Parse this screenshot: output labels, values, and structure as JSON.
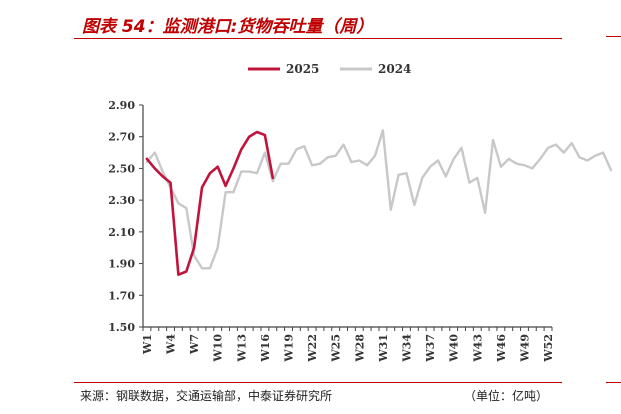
{
  "header": {
    "title": "图表 54：监测港口:货物吞吐量（周）"
  },
  "footer": {
    "source": "来源：钢联数据，交通运输部，中泰证券研究所",
    "unit": "（单位：亿吨）"
  },
  "chart_data": {
    "type": "line",
    "title": "图表 54：监测港口:货物吞吐量（周）",
    "xlabel": "",
    "ylabel": "",
    "ylim": [
      1.5,
      2.9
    ],
    "yticks": [
      1.5,
      1.7,
      1.9,
      2.1,
      2.3,
      2.5,
      2.7,
      2.9
    ],
    "yticklabels": [
      "1.50",
      "1.70",
      "1.90",
      "2.10",
      "2.30",
      "2.50",
      "2.70",
      "2.90"
    ],
    "xticklabels": [
      "W1",
      "W4",
      "W7",
      "W10",
      "W13",
      "W16",
      "W19",
      "W22",
      "W25",
      "W28",
      "W31",
      "W34",
      "W37",
      "W40",
      "W43",
      "W46",
      "W49",
      "W52"
    ],
    "legend_position": "top-center",
    "grid": false,
    "series": [
      {
        "name": "2025",
        "color": "#c0143c",
        "values": [
          2.56,
          2.5,
          2.45,
          2.41,
          1.83,
          1.85,
          2.0,
          2.38,
          2.47,
          2.51,
          2.39,
          2.5,
          2.62,
          2.7,
          2.73,
          2.71,
          2.44
        ]
      },
      {
        "name": "2024",
        "color": "#c8c8c8",
        "values": [
          2.54,
          2.6,
          2.48,
          2.38,
          2.28,
          2.25,
          1.95,
          1.87,
          1.87,
          2.0,
          2.35,
          2.35,
          2.48,
          2.48,
          2.47,
          2.6,
          2.42,
          2.53,
          2.53,
          2.62,
          2.64,
          2.52,
          2.53,
          2.57,
          2.58,
          2.65,
          2.54,
          2.55,
          2.52,
          2.58,
          2.74,
          2.24,
          2.46,
          2.47,
          2.27,
          2.44,
          2.51,
          2.55,
          2.45,
          2.56,
          2.63,
          2.41,
          2.44,
          2.22,
          2.68,
          2.51,
          2.56,
          2.53,
          2.52,
          2.5,
          2.56,
          2.63,
          2.65,
          2.6,
          2.66,
          2.57,
          2.55,
          2.58,
          2.6,
          2.49
        ]
      }
    ]
  }
}
